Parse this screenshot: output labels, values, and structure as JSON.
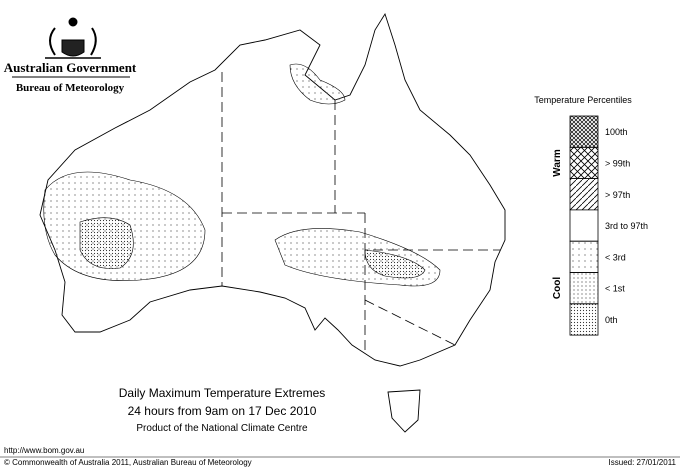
{
  "header": {
    "government": "Australian Government",
    "bureau": "Bureau of Meteorology"
  },
  "legend": {
    "title": "Temperature Percentiles",
    "warm_label": "Warm",
    "cool_label": "Cool",
    "items": [
      "100th",
      "> 99th",
      "> 97th",
      "3rd to 97th",
      "< 3rd",
      "< 1st",
      "0th"
    ]
  },
  "caption": {
    "title": "Daily Maximum Temperature Extremes",
    "period": "24 hours from 9am on 17 Dec 2010",
    "product": "Product of the National Climate Centre"
  },
  "footer": {
    "url": "http://www.bom.gov.au",
    "copyright": "© Commonwealth of Australia 2011, Australian Bureau of Meteorology",
    "issued": "Issued: 27/01/2011"
  }
}
